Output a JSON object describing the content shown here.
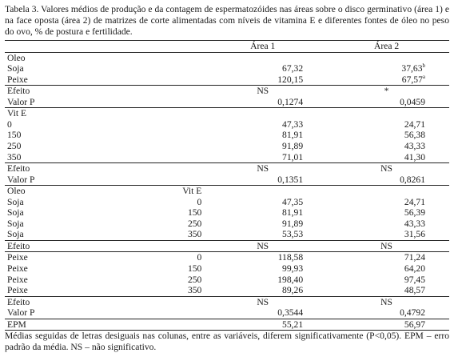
{
  "caption": "Tabela 3. Valores médios de produção e da contagem de espermatozóides nas áreas sobre o disco germinativo (área 1) e na face oposta (área 2) de matrizes de corte alimentadas com níveis de vitamina E e diferentes fontes de óleo no peso do ovo, % de postura e fertilidade.",
  "header": {
    "col_area1": "Área 1",
    "col_area2": "Área 2"
  },
  "oleo_section": {
    "title": "Oleo",
    "rows": [
      {
        "label": "Soja",
        "a1": "67,32",
        "a2": "37,63",
        "a2_sup": "b"
      },
      {
        "label": "Peixe",
        "a1": "120,15",
        "a2": "67,57",
        "a2_sup": "a"
      }
    ],
    "efeito": {
      "label": "Efeito",
      "a1": "NS",
      "a2": "*"
    },
    "valor_p": {
      "label": "Valor P",
      "a1": "0,1274",
      "a2": "0,0459"
    }
  },
  "vite_section": {
    "title": "Vit E",
    "rows": [
      {
        "label": "0",
        "a1": "47,33",
        "a2": "24,71"
      },
      {
        "label": "150",
        "a1": "81,91",
        "a2": "56,38"
      },
      {
        "label": "250",
        "a1": "91,89",
        "a2": "43,33"
      },
      {
        "label": "350",
        "a1": "71,01",
        "a2": "41,30"
      }
    ],
    "efeito": {
      "label": "Efeito",
      "a1": "NS",
      "a2": "NS"
    },
    "valor_p": {
      "label": "Valor P",
      "a1": "0,1351",
      "a2": "0,8261"
    }
  },
  "interaction": {
    "col_oleo": "Oleo",
    "col_vite": "Vit E",
    "soja_rows": [
      {
        "oleo": "Soja",
        "vite": "0",
        "a1": "47,35",
        "a2": "24,71"
      },
      {
        "oleo": "Soja",
        "vite": "150",
        "a1": "81,91",
        "a2": "56,39"
      },
      {
        "oleo": "Soja",
        "vite": "250",
        "a1": "91,89",
        "a2": "43,33"
      },
      {
        "oleo": "Soja",
        "vite": "350",
        "a1": "53,53",
        "a2": "31,56"
      }
    ],
    "efeito_soja": {
      "label": "Efeito",
      "a1": "NS",
      "a2": "NS"
    },
    "peixe_rows": [
      {
        "oleo": "Peixe",
        "vite": "0",
        "a1": "118,58",
        "a2": "71,24"
      },
      {
        "oleo": "Peixe",
        "vite": "150",
        "a1": "99,93",
        "a2": "64,20"
      },
      {
        "oleo": "Peixe",
        "vite": "250",
        "a1": "198,40",
        "a2": "97,45"
      },
      {
        "oleo": "Peixe",
        "vite": "350",
        "a1": "89,26",
        "a2": "48,57"
      }
    ],
    "efeito_peixe": {
      "label": "Efeito",
      "a1": "NS",
      "a2": "NS"
    },
    "valor_p": {
      "label": "Valor P",
      "a1": "0,3544",
      "a2": "0,4792"
    }
  },
  "epm": {
    "label": "EPM",
    "a1": "55,21",
    "a2": "56,97"
  },
  "footnote": "Médias seguidas de letras desiguais nas colunas, entre as variáveis, diferem significativamente (P<0,05). EPM – erro padrão da média. NS – não significativo."
}
